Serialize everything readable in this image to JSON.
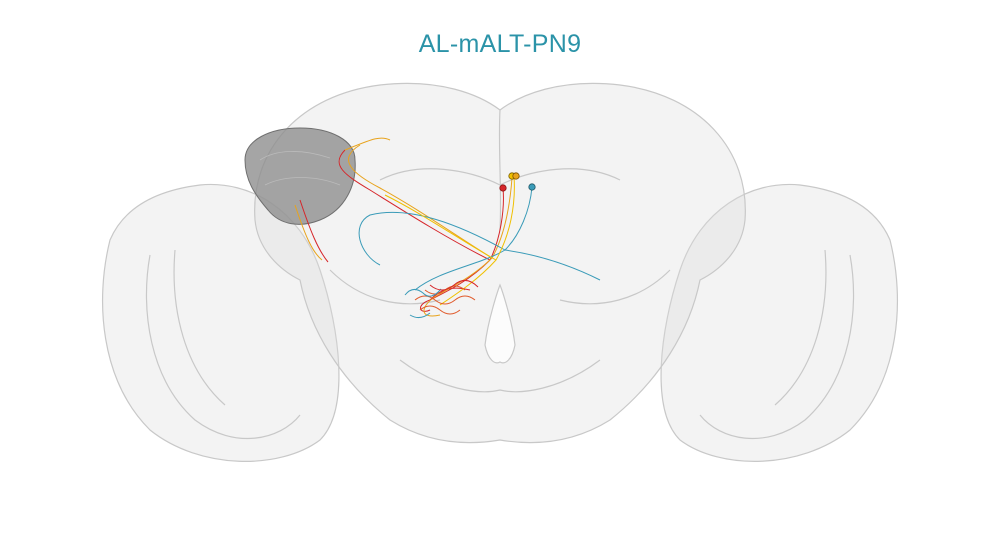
{
  "title": "AL-mALT-PN9",
  "colors": {
    "title": "#2b93a8",
    "brain_fill": "#d9d9d9",
    "brain_stroke": "#bfbfbf",
    "highlight_region": "#8c8c8c",
    "neurons": [
      "#d6262a",
      "#e8a31c",
      "#3a9bb8",
      "#f0c000",
      "#e0592a"
    ]
  },
  "neuron_count": 5
}
